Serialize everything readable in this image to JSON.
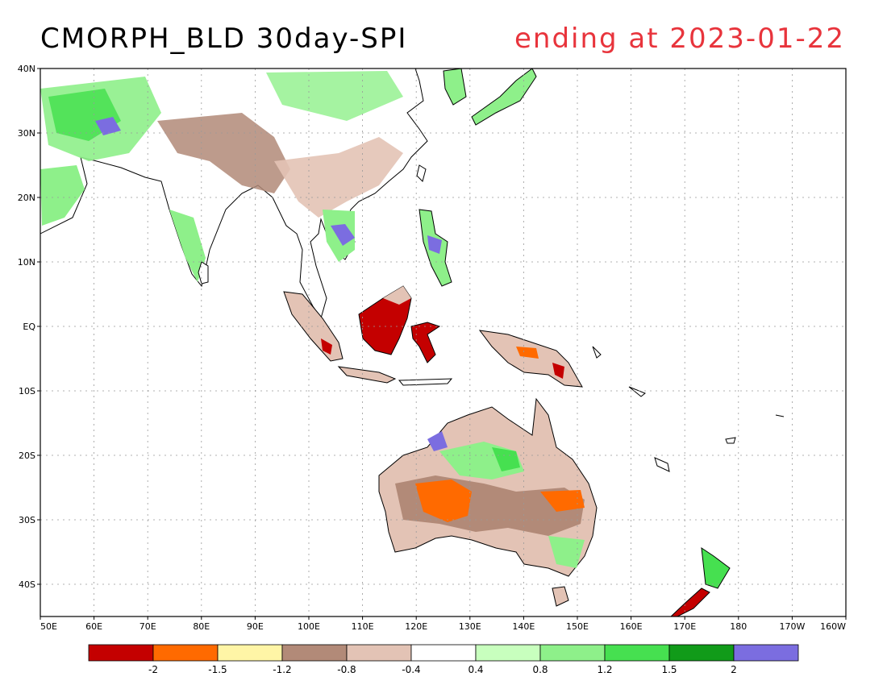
{
  "title": {
    "left": "CMORPH_BLD 30day-SPI",
    "right": "ending at 2023-01-22",
    "right_color": "#e8343c"
  },
  "map": {
    "lon_range": [
      50,
      200
    ],
    "lat_range": [
      -45,
      40
    ],
    "lat_ticks": [
      {
        "value": 40,
        "label": "40N"
      },
      {
        "value": 30,
        "label": "30N"
      },
      {
        "value": 20,
        "label": "20N"
      },
      {
        "value": 10,
        "label": "10N"
      },
      {
        "value": 0,
        "label": "EQ"
      },
      {
        "value": -10,
        "label": "10S"
      },
      {
        "value": -20,
        "label": "20S"
      },
      {
        "value": -30,
        "label": "30S"
      },
      {
        "value": -40,
        "label": "40S"
      }
    ],
    "lon_ticks": [
      {
        "value": 50,
        "label": "50E"
      },
      {
        "value": 60,
        "label": "60E"
      },
      {
        "value": 70,
        "label": "70E"
      },
      {
        "value": 80,
        "label": "80E"
      },
      {
        "value": 90,
        "label": "90E"
      },
      {
        "value": 100,
        "label": "100E"
      },
      {
        "value": 110,
        "label": "110E"
      },
      {
        "value": 120,
        "label": "120E"
      },
      {
        "value": 130,
        "label": "130E"
      },
      {
        "value": 140,
        "label": "140E"
      },
      {
        "value": 150,
        "label": "150E"
      },
      {
        "value": 160,
        "label": "160E"
      },
      {
        "value": 170,
        "label": "170E"
      },
      {
        "value": 180,
        "label": "180"
      },
      {
        "value": 190,
        "label": "170W"
      },
      {
        "value": 200,
        "label": "160W"
      }
    ],
    "grid": "dotted"
  },
  "colorbar": {
    "colors": [
      "#c40000",
      "#ff6a00",
      "#fff5a6",
      "#b28a78",
      "#e3c3b5",
      "#ffffff",
      "#c8ffbe",
      "#8ef08a",
      "#46e050",
      "#119b19",
      "#7b6de0"
    ],
    "labels": [
      "-2",
      "-1.5",
      "-1.2",
      "-0.8",
      "-0.4",
      "0.4",
      "0.8",
      "1.2",
      "1.5",
      "2"
    ]
  }
}
